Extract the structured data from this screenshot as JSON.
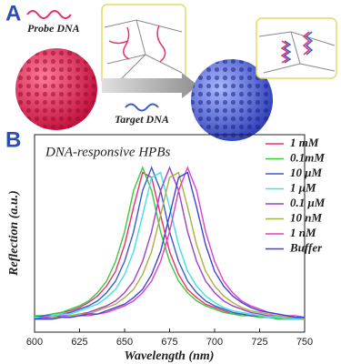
{
  "panel_labels": [
    "A",
    "B"
  ],
  "illustration": {
    "probe_label": "Probe DNA",
    "target_label": "Target DNA"
  },
  "chart_data": {
    "type": "line",
    "title": "DNA-responsive HPBs",
    "x_label": "Wavelength (nm)",
    "y_label": "Reflection (a.u.)",
    "x": [
      600,
      605,
      610,
      615,
      620,
      625,
      630,
      635,
      640,
      645,
      650,
      655,
      660,
      665,
      670,
      675,
      680,
      685,
      690,
      695,
      700,
      705,
      710,
      715,
      720,
      725,
      730,
      735,
      740,
      745,
      750
    ],
    "xlim": [
      600,
      750
    ],
    "xticks": [
      600,
      625,
      650,
      675,
      700,
      725,
      750
    ],
    "ylim": [
      0,
      1.2
    ],
    "legend": "upper right",
    "series": [
      {
        "name": "1  mM",
        "color": "#e8306e",
        "values": [
          0.09,
          0.1,
          0.11,
          0.12,
          0.13,
          0.15,
          0.18,
          0.22,
          0.28,
          0.37,
          0.53,
          0.76,
          0.97,
          0.94,
          0.71,
          0.49,
          0.35,
          0.26,
          0.21,
          0.17,
          0.15,
          0.13,
          0.11,
          0.11,
          0.1,
          0.09,
          0.09,
          0.08,
          0.08,
          0.08,
          0.08
        ]
      },
      {
        "name": "0.1mM",
        "color": "#3cc83c",
        "values": [
          0.1,
          0.1,
          0.11,
          0.12,
          0.14,
          0.16,
          0.19,
          0.24,
          0.31,
          0.43,
          0.61,
          0.86,
          1.0,
          0.86,
          0.61,
          0.43,
          0.31,
          0.24,
          0.19,
          0.16,
          0.14,
          0.12,
          0.11,
          0.1,
          0.1,
          0.09,
          0.09,
          0.08,
          0.08,
          0.08,
          0.08
        ]
      },
      {
        "name": "10 μM",
        "color": "#3a5cc8",
        "values": [
          0.09,
          0.1,
          0.1,
          0.11,
          0.12,
          0.14,
          0.16,
          0.19,
          0.24,
          0.31,
          0.43,
          0.61,
          0.86,
          1.0,
          0.86,
          0.61,
          0.43,
          0.31,
          0.24,
          0.19,
          0.16,
          0.14,
          0.12,
          0.11,
          0.1,
          0.1,
          0.09,
          0.09,
          0.08,
          0.08,
          0.08
        ]
      },
      {
        "name": "1  μM",
        "color": "#40e0e0",
        "values": [
          0.09,
          0.09,
          0.1,
          0.11,
          0.11,
          0.13,
          0.15,
          0.17,
          0.21,
          0.26,
          0.35,
          0.49,
          0.71,
          0.94,
          0.97,
          0.76,
          0.53,
          0.37,
          0.28,
          0.22,
          0.18,
          0.15,
          0.13,
          0.12,
          0.11,
          0.1,
          0.09,
          0.09,
          0.08,
          0.08,
          0.08
        ]
      },
      {
        "name": "0.1 μM",
        "color": "#a040c8",
        "values": [
          0.08,
          0.09,
          0.09,
          0.1,
          0.1,
          0.11,
          0.12,
          0.14,
          0.16,
          0.19,
          0.24,
          0.31,
          0.43,
          0.61,
          0.86,
          1.0,
          0.86,
          0.61,
          0.43,
          0.31,
          0.24,
          0.19,
          0.16,
          0.14,
          0.12,
          0.11,
          0.1,
          0.1,
          0.09,
          0.09,
          0.08
        ]
      },
      {
        "name": "10 nM",
        "color": "#a8b040",
        "values": [
          0.08,
          0.08,
          0.09,
          0.09,
          0.1,
          0.11,
          0.11,
          0.13,
          0.15,
          0.17,
          0.21,
          0.26,
          0.35,
          0.49,
          0.71,
          0.94,
          0.97,
          0.76,
          0.53,
          0.37,
          0.28,
          0.22,
          0.18,
          0.15,
          0.13,
          0.12,
          0.11,
          0.1,
          0.09,
          0.09,
          0.08
        ]
      },
      {
        "name": "1  nM",
        "color": "#e040c0",
        "values": [
          0.08,
          0.08,
          0.08,
          0.09,
          0.09,
          0.1,
          0.1,
          0.11,
          0.12,
          0.14,
          0.16,
          0.19,
          0.24,
          0.31,
          0.43,
          0.61,
          0.86,
          1.0,
          0.86,
          0.61,
          0.43,
          0.31,
          0.24,
          0.19,
          0.16,
          0.14,
          0.12,
          0.11,
          0.1,
          0.1,
          0.09
        ]
      },
      {
        "name": "Buffer",
        "color": "#4040d8",
        "values": [
          0.08,
          0.08,
          0.08,
          0.09,
          0.09,
          0.1,
          0.11,
          0.11,
          0.13,
          0.15,
          0.17,
          0.21,
          0.26,
          0.35,
          0.49,
          0.71,
          0.94,
          0.97,
          0.76,
          0.53,
          0.37,
          0.28,
          0.22,
          0.18,
          0.15,
          0.13,
          0.12,
          0.11,
          0.1,
          0.09,
          0.09
        ]
      }
    ]
  }
}
